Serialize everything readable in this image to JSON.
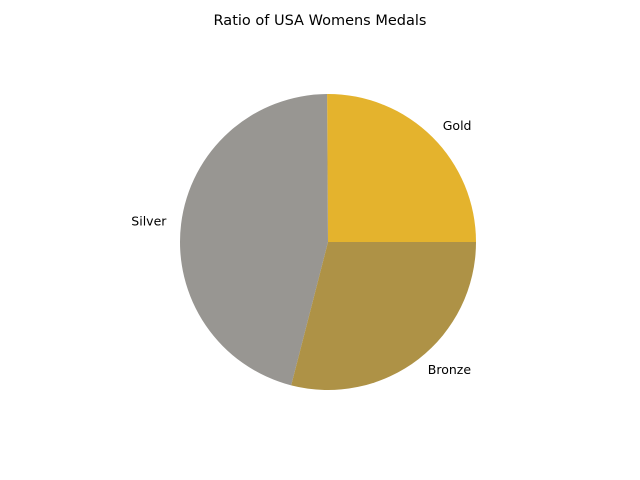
{
  "chart_data": {
    "type": "pie",
    "title": "Ratio of USA Womens Medals",
    "start_angle": 0,
    "direction": "counterclockwise",
    "slices": [
      {
        "label": "Gold",
        "value": 25.1,
        "color": "#E4B32D"
      },
      {
        "label": "Silver",
        "value": 45.9,
        "color": "#989692"
      },
      {
        "label": "Bronze",
        "value": 29.0,
        "color": "#AE9246"
      }
    ]
  }
}
